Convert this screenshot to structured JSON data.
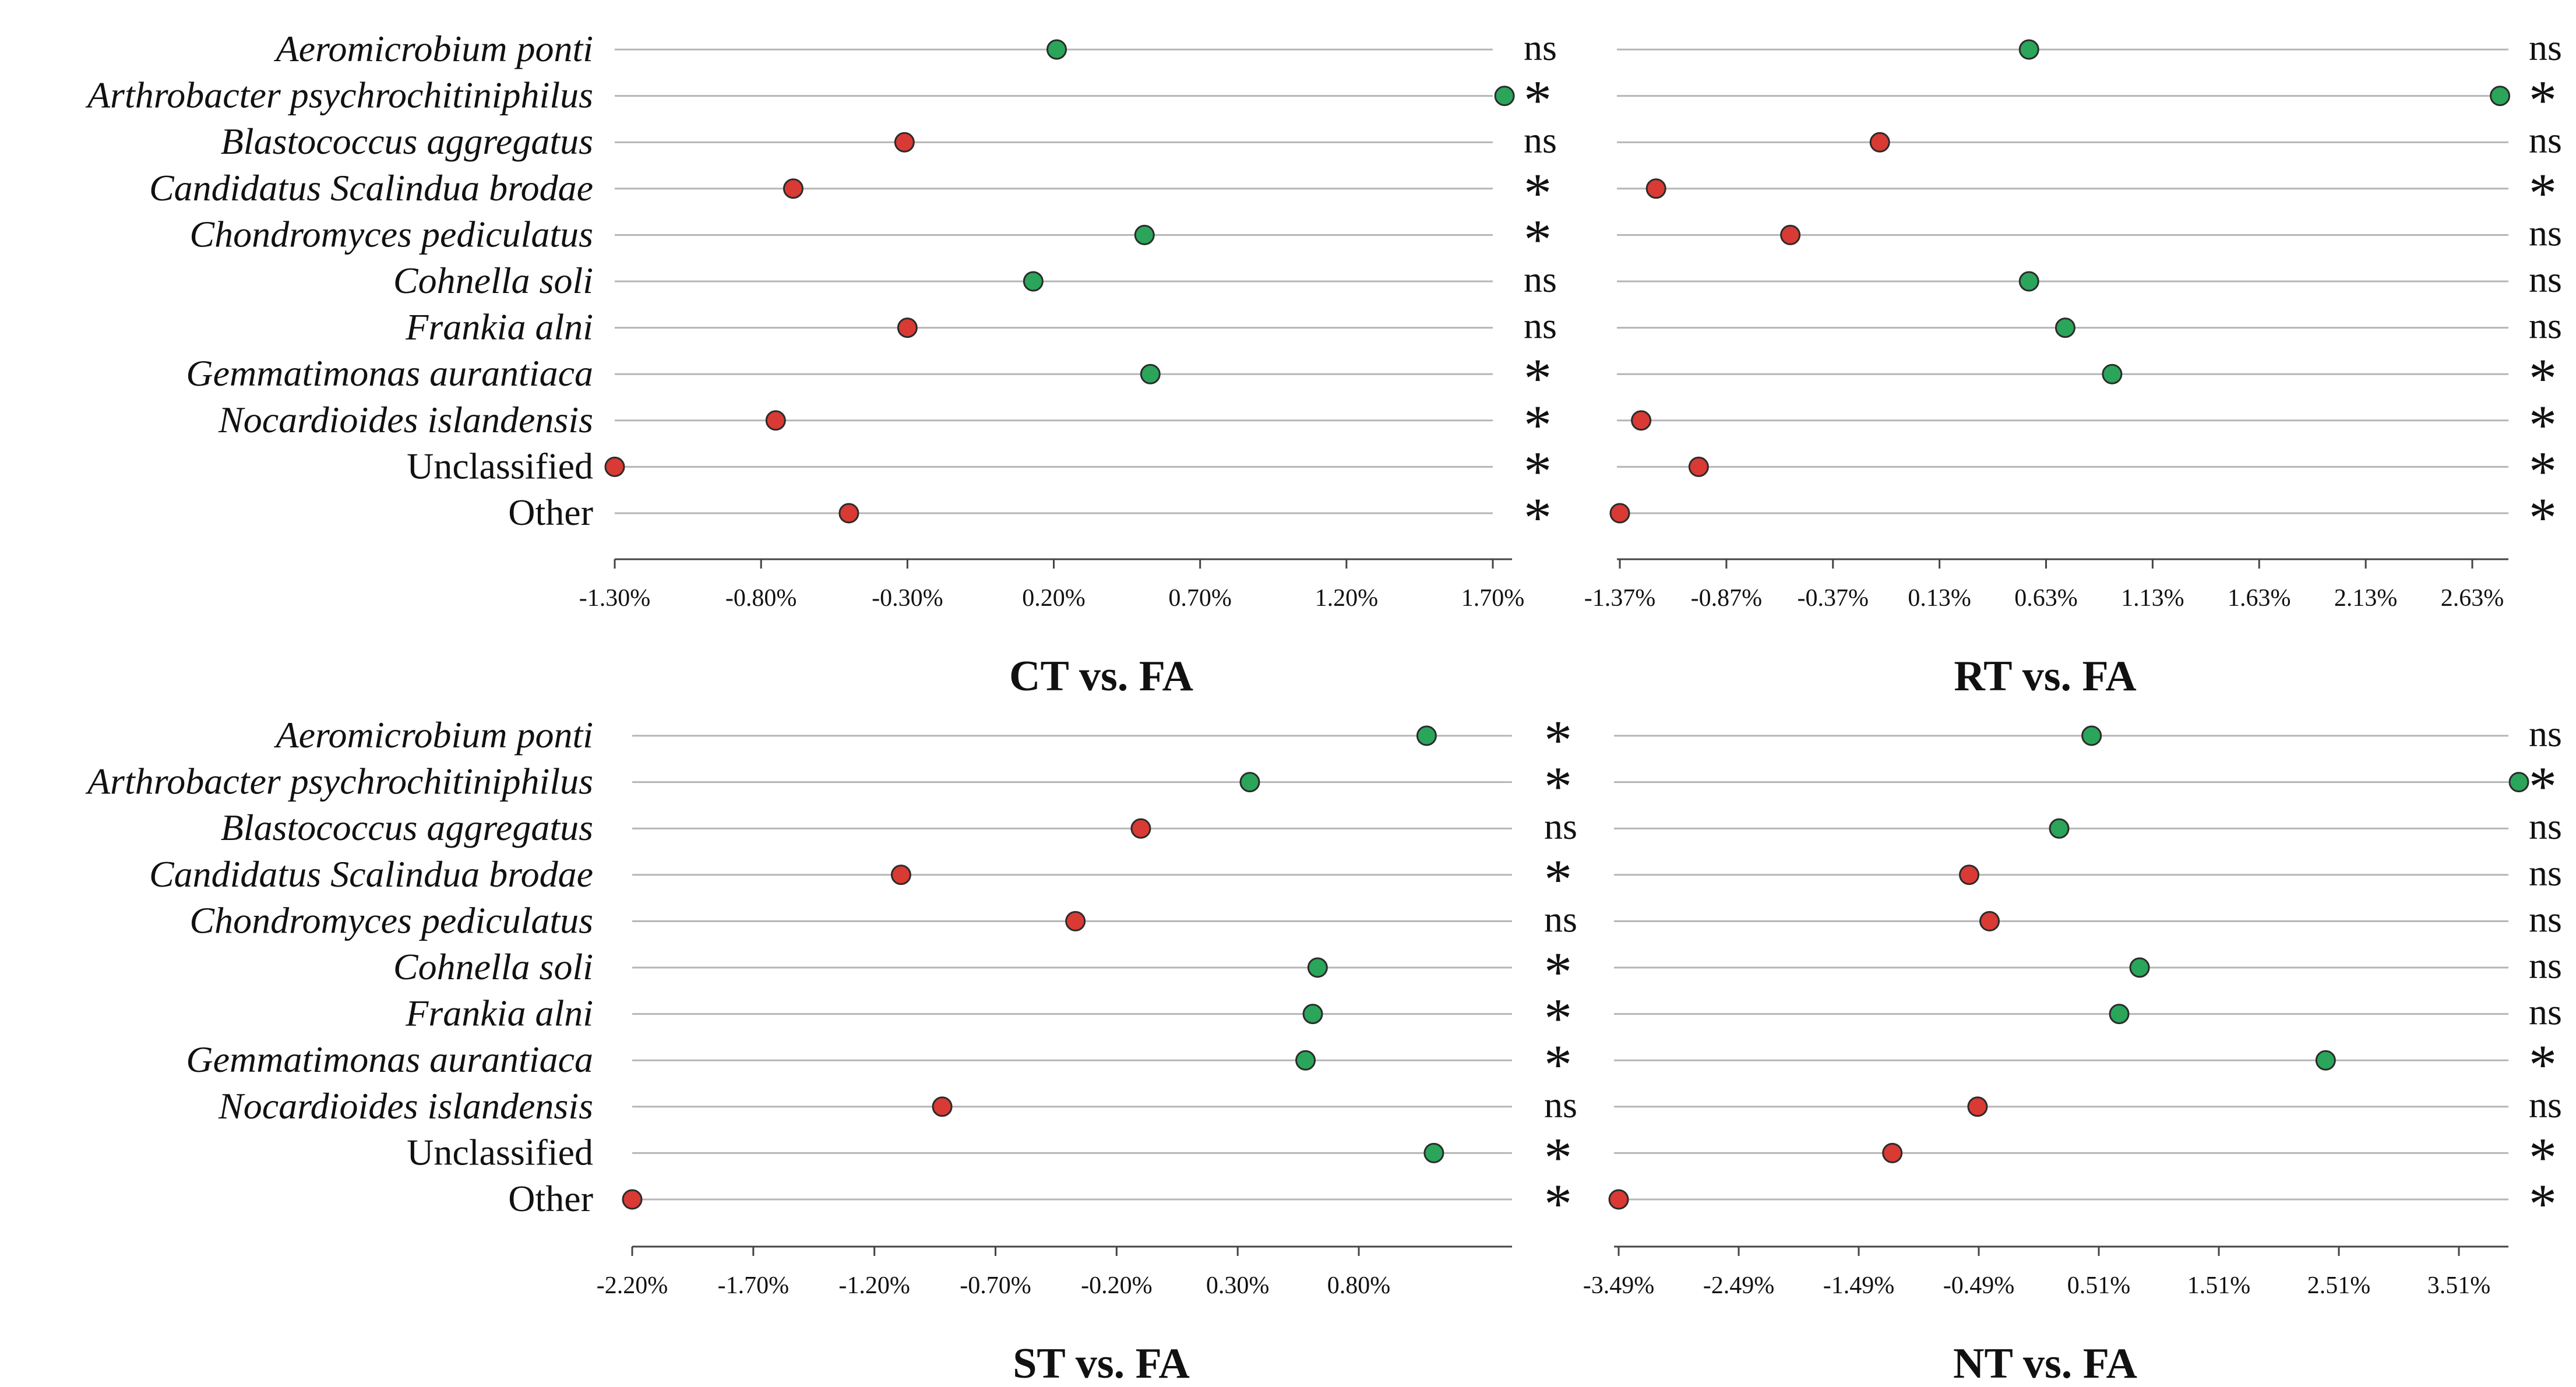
{
  "colors": {
    "increase": "#2aa55a",
    "decrease": "#d93a34",
    "row_line": "#b5b5b5",
    "axis": "#444444",
    "text": "#111111"
  },
  "chart_data": [
    {
      "type": "scatter",
      "title": "CT vs. FA",
      "categories": [
        "Aeromicrobium ponti",
        "Arthrobacter psychrochitiniphilus",
        "Blastococcus aggregatus",
        "Candidatus Scalindua brodae",
        "Chondromyces pediculatus",
        "Cohnella soli",
        "Frankia alni",
        "Gemmatimonas aurantiaca",
        "Nocardioides islandensis",
        "Unclassified",
        "Other"
      ],
      "values": [
        0.21,
        1.74,
        -0.31,
        -0.69,
        0.51,
        0.13,
        -0.3,
        0.53,
        -0.75,
        -1.3,
        -0.5
      ],
      "significance": [
        "ns",
        "*",
        "ns",
        "*",
        "*",
        "ns",
        "ns",
        "*",
        "*",
        "*",
        "*"
      ],
      "xlim": [
        -1.3,
        1.8
      ],
      "xticks": [
        -1.3,
        -0.8,
        -0.3,
        0.2,
        0.7,
        1.2,
        1.7
      ],
      "xtick_labels": [
        "-1.30%",
        "-0.80%",
        "-0.30%",
        "0.20%",
        "0.70%",
        "1.20%",
        "1.70%"
      ]
    },
    {
      "type": "scatter",
      "title": "RT vs. FA",
      "categories": [
        "Aeromicrobium ponti",
        "Arthrobacter psychrochitiniphilus",
        "Blastococcus aggregatus",
        "Candidatus Scalindua brodae",
        "Chondromyces pediculatus",
        "Cohnella soli",
        "Frankia alni",
        "Gemmatimonas aurantiaca",
        "Nocardioides islandensis",
        "Unclassified",
        "Other"
      ],
      "values": [
        0.55,
        2.76,
        -0.15,
        -1.2,
        -0.57,
        0.55,
        0.72,
        0.94,
        -1.27,
        -1.0,
        -1.37
      ],
      "significance": [
        "ns",
        "*",
        "ns",
        "*",
        "ns",
        "ns",
        "ns",
        "*",
        "*",
        "*",
        "*"
      ],
      "xlim": [
        -1.37,
        2.83
      ],
      "xticks": [
        -1.37,
        -0.87,
        -0.37,
        0.13,
        0.63,
        1.13,
        1.63,
        2.13,
        2.63
      ],
      "xtick_labels": [
        "-1.37%",
        "-0.87%",
        "-0.37%",
        "0.13%",
        "0.63%",
        "1.13%",
        "1.63%",
        "2.13%",
        "2.63%"
      ]
    },
    {
      "type": "scatter",
      "title": "ST vs. FA",
      "categories": [
        "Aeromicrobium ponti",
        "Arthrobacter psychrochitiniphilus",
        "Blastococcus aggregatus",
        "Candidatus Scalindua brodae",
        "Chondromyces pediculatus",
        "Cohnella soli",
        "Frankia alni",
        "Gemmatimonas aurantiaca",
        "Nocardioides islandensis",
        "Unclassified",
        "Other"
      ],
      "values": [
        1.08,
        0.35,
        -0.1,
        -1.09,
        -0.37,
        0.63,
        0.61,
        0.58,
        -0.92,
        1.11,
        -2.2
      ],
      "significance": [
        "*",
        "*",
        "ns",
        "*",
        "ns",
        "*",
        "*",
        "*",
        "ns",
        "*",
        "*"
      ],
      "xlim": [
        -2.2,
        1.3
      ],
      "xticks": [
        -2.2,
        -1.7,
        -1.2,
        -0.7,
        -0.2,
        0.3,
        0.8
      ],
      "xtick_labels": [
        "-2.20%",
        "-1.70%",
        "-1.20%",
        "-0.70%",
        "-0.20%",
        "0.30%",
        "0.80%"
      ]
    },
    {
      "type": "scatter",
      "title": "NT vs. FA",
      "categories": [
        "Aeromicrobium ponti",
        "Arthrobacter psychrochitiniphilus",
        "Blastococcus aggregatus",
        "Candidatus Scalindua brodae",
        "Chondromyces pediculatus",
        "Cohnella soli",
        "Frankia alni",
        "Gemmatimonas aurantiaca",
        "Nocardioides islandensis",
        "Unclassified",
        "Other"
      ],
      "values": [
        0.45,
        4.01,
        0.18,
        -0.57,
        -0.4,
        0.85,
        0.68,
        2.4,
        -0.5,
        -1.21,
        -3.49
      ],
      "significance": [
        "ns",
        "*",
        "ns",
        "ns",
        "ns",
        "ns",
        "ns",
        "*",
        "ns",
        "*",
        "*"
      ],
      "xlim": [
        -3.49,
        4.1
      ],
      "xticks": [
        -3.49,
        -2.49,
        -1.49,
        -0.49,
        0.51,
        1.51,
        2.51,
        3.51
      ],
      "xtick_labels": [
        "-3.49%",
        "-2.49%",
        "-1.49%",
        "-0.49%",
        "0.51%",
        "1.51%",
        "2.51%",
        "3.51%"
      ]
    }
  ]
}
